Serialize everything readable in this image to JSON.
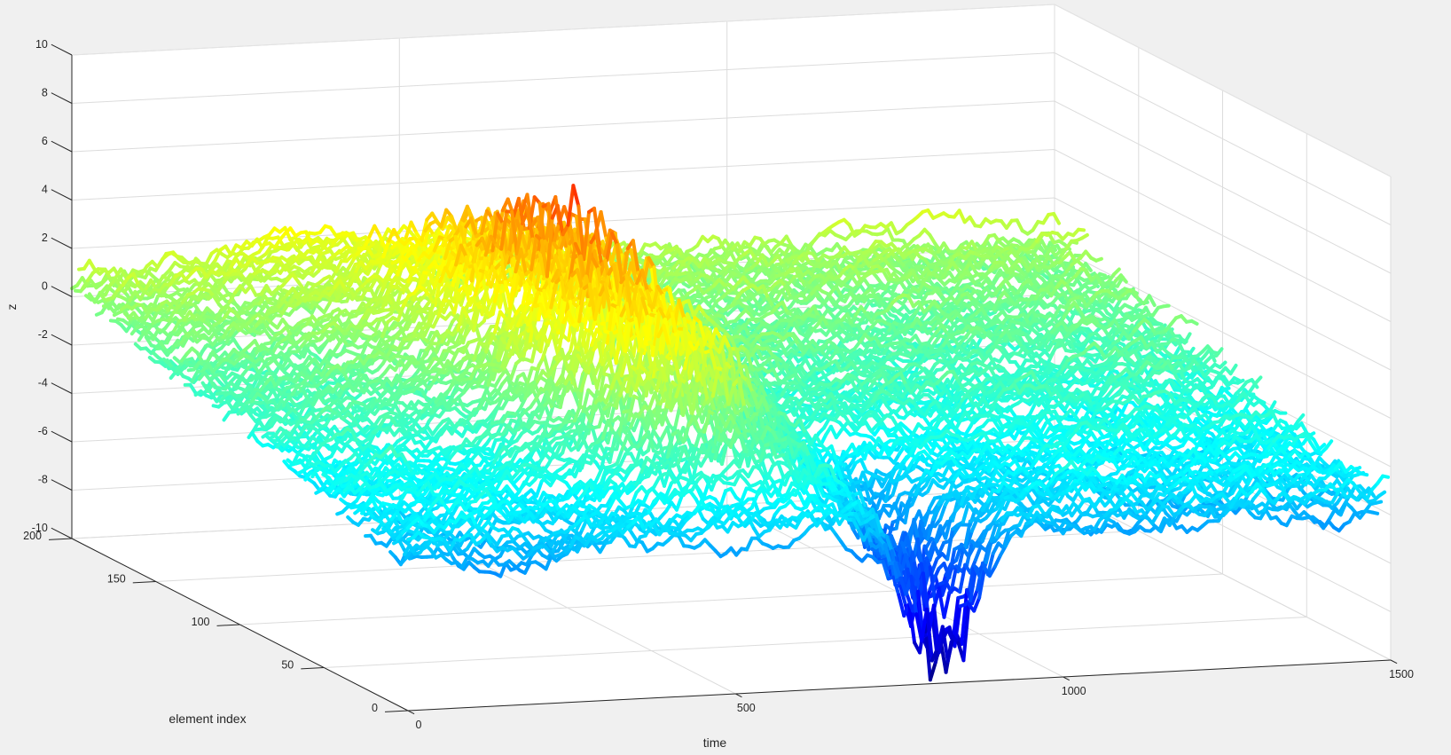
{
  "chart_data": {
    "type": "line",
    "plot_style": "3d-waterfall",
    "colormap": "jet",
    "grid": true,
    "background_color": "#f0f0f0",
    "axes_color": "#ffffff",
    "xlabel": "time",
    "ylabel": "element index",
    "zlabel": "z",
    "xlim": [
      0,
      1500
    ],
    "ylim": [
      0,
      200
    ],
    "zlim": [
      -10,
      10
    ],
    "x_ticks": [
      0,
      500,
      1000,
      1500
    ],
    "y_ticks": [
      0,
      50,
      100,
      150,
      200
    ],
    "z_ticks": [
      -10,
      -8,
      -6,
      -4,
      -2,
      0,
      2,
      4,
      6,
      8,
      10
    ],
    "series_summary": {
      "description_values": {
        "approx_series_count": 200,
        "points_per_series": 1500,
        "baseline_z": -1,
        "z_min": -10,
        "z_max": 8,
        "peak_time": 550,
        "trough_time": 820
      },
      "key_series": [
        {
          "element": 0,
          "points": [
            [
              0,
              -2.5
            ],
            [
              150,
              -3
            ],
            [
              400,
              -3.2
            ],
            [
              700,
              -3.5
            ],
            [
              1000,
              -3.6
            ],
            [
              1300,
              -4
            ],
            [
              1500,
              -4.2
            ]
          ]
        },
        {
          "element": 20,
          "points": [
            [
              0,
              -1
            ],
            [
              300,
              -2.5
            ],
            [
              600,
              -5
            ],
            [
              800,
              -6
            ],
            [
              830,
              -10
            ],
            [
              870,
              -7
            ],
            [
              1000,
              -5
            ],
            [
              1300,
              -4
            ],
            [
              1500,
              -4.5
            ]
          ]
        },
        {
          "element": 60,
          "points": [
            [
              0,
              -0.5
            ],
            [
              300,
              0
            ],
            [
              500,
              2
            ],
            [
              550,
              7
            ],
            [
              600,
              6
            ],
            [
              700,
              4
            ],
            [
              850,
              2
            ],
            [
              1000,
              1
            ],
            [
              1200,
              0.5
            ],
            [
              1500,
              0
            ]
          ]
        },
        {
          "element": 100,
          "points": [
            [
              0,
              0
            ],
            [
              200,
              0.5
            ],
            [
              400,
              1
            ],
            [
              500,
              2.5
            ],
            [
              550,
              8
            ],
            [
              600,
              6
            ],
            [
              700,
              3
            ],
            [
              800,
              2.5
            ],
            [
              1000,
              1.5
            ],
            [
              1200,
              1
            ],
            [
              1500,
              0.5
            ]
          ]
        },
        {
          "element": 150,
          "points": [
            [
              0,
              0
            ],
            [
              300,
              1
            ],
            [
              600,
              2
            ],
            [
              900,
              1.5
            ],
            [
              1200,
              1
            ],
            [
              1500,
              0.5
            ]
          ]
        },
        {
          "element": 200,
          "points": [
            [
              0,
              0.5
            ],
            [
              400,
              1
            ],
            [
              800,
              2
            ],
            [
              1200,
              1
            ],
            [
              1500,
              0.5
            ]
          ]
        }
      ]
    }
  }
}
